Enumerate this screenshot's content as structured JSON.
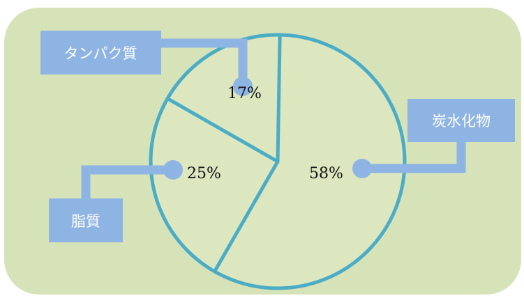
{
  "chart_data": {
    "type": "pie",
    "title": "",
    "categories": [
      "炭水化物",
      "脂質",
      "タンパク質"
    ],
    "values": [
      58,
      25,
      17
    ],
    "value_labels": [
      "58%",
      "25%",
      "17%"
    ],
    "legend": "none",
    "colors": {
      "panel_fill": "#d6e2b8",
      "pie_fill": "#dce6bf",
      "pie_stroke": "#4bacc6",
      "label_box": "#8eb4e3",
      "label_text": "#ffffff",
      "value_text": "#111111"
    }
  }
}
